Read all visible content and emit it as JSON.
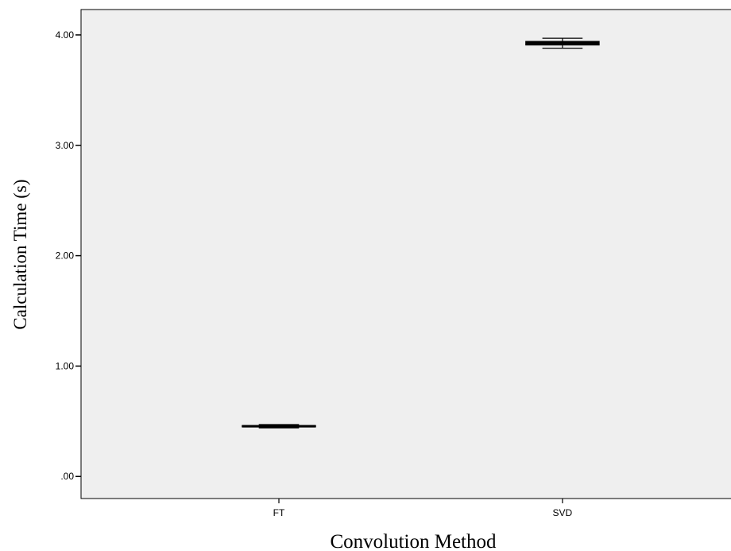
{
  "chart_data": {
    "type": "box",
    "xlabel": "Convolution Method",
    "ylabel": "Calculation Time (s)",
    "ylim": [
      -0.2,
      4.23
    ],
    "yticks": [
      ".00",
      "1.00",
      "2.00",
      "3.00",
      "4.00"
    ],
    "ytick_values": [
      0,
      1,
      2,
      3,
      4
    ],
    "categories": [
      "FT",
      "SVD"
    ],
    "boxes": [
      {
        "category": "FT",
        "min": 0.44,
        "q1": 0.45,
        "median": 0.455,
        "q3": 0.46,
        "max": 0.47
      },
      {
        "category": "SVD",
        "min": 3.88,
        "q1": 3.91,
        "median": 3.925,
        "q3": 3.94,
        "max": 3.97
      }
    ],
    "grid": false,
    "colors": {
      "plot_background": "#efefef",
      "box_fill": "#efefef",
      "stroke": "#000000"
    }
  }
}
